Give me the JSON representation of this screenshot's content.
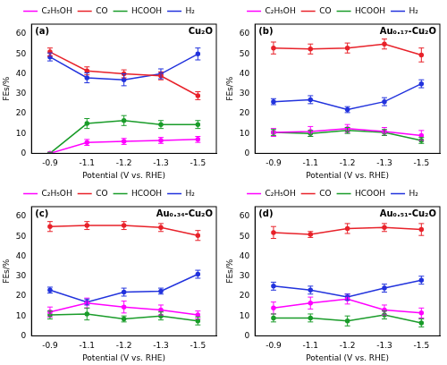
{
  "chart_data": [
    {
      "type": "line",
      "title": "(a)",
      "annotation": "Cu₂O",
      "x_label": "Potential (V vs. RHE)",
      "y_label": "FEs/%",
      "categories": [
        "-0.9",
        "-1.1",
        "-1.2",
        "-1.3",
        "-1.5"
      ],
      "ylim": [
        0,
        65
      ],
      "yticks": [
        0,
        10,
        20,
        30,
        40,
        50,
        60
      ],
      "grid": false,
      "legend": "top",
      "marker": "circle",
      "line_style": "solid",
      "series": [
        {
          "name": "C₂H₅OH",
          "color": "#ff00ff",
          "values": [
            0,
            5.5,
            6,
            6.5,
            7
          ],
          "errors": [
            0.5,
            1.5,
            1.5,
            1.5,
            1.5
          ]
        },
        {
          "name": "CO",
          "color": "#e8222a",
          "values": [
            51,
            41.5,
            40,
            39,
            29
          ],
          "errors": [
            2,
            2,
            2,
            2,
            2
          ]
        },
        {
          "name": "HCOOH",
          "color": "#1a9c2a",
          "values": [
            0,
            15,
            16.5,
            14.5,
            14.5
          ],
          "errors": [
            0.5,
            2.5,
            2.5,
            2,
            2
          ]
        },
        {
          "name": "H₂",
          "color": "#2233dd",
          "values": [
            48.5,
            38,
            37,
            40,
            50
          ],
          "errors": [
            2,
            2.5,
            3,
            2.5,
            3
          ]
        }
      ]
    },
    {
      "type": "line",
      "title": "(b)",
      "annotation": "Au₀.₁₇-Cu₂O",
      "x_label": "Potential (V vs. RHE)",
      "y_label": "FEs/%",
      "categories": [
        "-0.9",
        "-1.1",
        "-1.2",
        "-1.3",
        "-1.5"
      ],
      "ylim": [
        0,
        65
      ],
      "yticks": [
        0,
        10,
        20,
        30,
        40,
        50,
        60
      ],
      "grid": false,
      "legend": "top",
      "marker": "circle",
      "line_style": "solid",
      "series": [
        {
          "name": "C₂H₅OH",
          "color": "#ff00ff",
          "values": [
            10.5,
            11,
            12.5,
            11,
            9
          ],
          "errors": [
            2,
            2.5,
            2,
            2,
            2.5
          ]
        },
        {
          "name": "CO",
          "color": "#e8222a",
          "values": [
            53,
            52.5,
            53,
            55,
            49.5
          ],
          "errors": [
            3,
            2.5,
            2.5,
            2.5,
            3.5
          ]
        },
        {
          "name": "HCOOH",
          "color": "#1a9c2a",
          "values": [
            10.5,
            10,
            11.5,
            10.5,
            6.5
          ],
          "errors": [
            1.5,
            1.5,
            1.5,
            1.5,
            1.5
          ]
        },
        {
          "name": "H₂",
          "color": "#2233dd",
          "values": [
            26,
            27,
            22,
            26,
            35
          ],
          "errors": [
            1.5,
            2,
            1.5,
            2,
            2
          ]
        }
      ]
    },
    {
      "type": "line",
      "title": "(c)",
      "annotation": "Au₀.₃₄-Cu₂O",
      "x_label": "Potential (V vs. RHE)",
      "y_label": "FEs/%",
      "categories": [
        "-0.9",
        "-1.1",
        "-1.2",
        "-1.3",
        "-1.5"
      ],
      "ylim": [
        0,
        65
      ],
      "yticks": [
        0,
        10,
        20,
        30,
        40,
        50,
        60
      ],
      "grid": false,
      "legend": "top",
      "marker": "circle",
      "line_style": "solid",
      "series": [
        {
          "name": "C₂H₅OH",
          "color": "#ff00ff",
          "values": [
            12,
            16.5,
            14.5,
            13,
            10.5
          ],
          "errors": [
            2.5,
            2.5,
            3,
            2.5,
            2
          ]
        },
        {
          "name": "CO",
          "color": "#e8222a",
          "values": [
            55,
            55.5,
            55.5,
            54.5,
            50.5
          ],
          "errors": [
            2.5,
            2,
            2,
            2,
            2.5
          ]
        },
        {
          "name": "HCOOH",
          "color": "#1a9c2a",
          "values": [
            10.5,
            11,
            8.5,
            10,
            7.5
          ],
          "errors": [
            2,
            3,
            1.5,
            2,
            2
          ]
        },
        {
          "name": "H₂",
          "color": "#2233dd",
          "values": [
            23,
            17,
            22,
            22.5,
            31
          ],
          "errors": [
            1.5,
            1.5,
            2,
            1.5,
            2
          ]
        }
      ]
    },
    {
      "type": "line",
      "title": "(d)",
      "annotation": "Au₀.₅₁-Cu₂O",
      "x_label": "Potential (V vs. RHE)",
      "y_label": "FEs/%",
      "categories": [
        "-0.9",
        "-1.1",
        "-1.2",
        "-1.3",
        "-1.5"
      ],
      "ylim": [
        0,
        65
      ],
      "yticks": [
        0,
        10,
        20,
        30,
        40,
        50,
        60
      ],
      "grid": false,
      "legend": "top",
      "marker": "circle",
      "line_style": "solid",
      "series": [
        {
          "name": "C₂H₅OH",
          "color": "#ff00ff",
          "values": [
            14,
            16.5,
            18.5,
            13,
            11.5
          ],
          "errors": [
            3,
            3,
            2.5,
            2.5,
            2.5
          ]
        },
        {
          "name": "CO",
          "color": "#e8222a",
          "values": [
            52,
            51,
            54,
            54.5,
            53.5
          ],
          "errors": [
            3,
            1.5,
            2.5,
            2,
            3
          ]
        },
        {
          "name": "HCOOH",
          "color": "#1a9c2a",
          "values": [
            9,
            9,
            7.5,
            10.5,
            6.5
          ],
          "errors": [
            2,
            2,
            2.5,
            2,
            2
          ]
        },
        {
          "name": "H₂",
          "color": "#2233dd",
          "values": [
            25,
            23,
            19.5,
            24,
            28
          ],
          "errors": [
            2,
            2,
            1.5,
            2,
            2
          ]
        }
      ]
    }
  ]
}
